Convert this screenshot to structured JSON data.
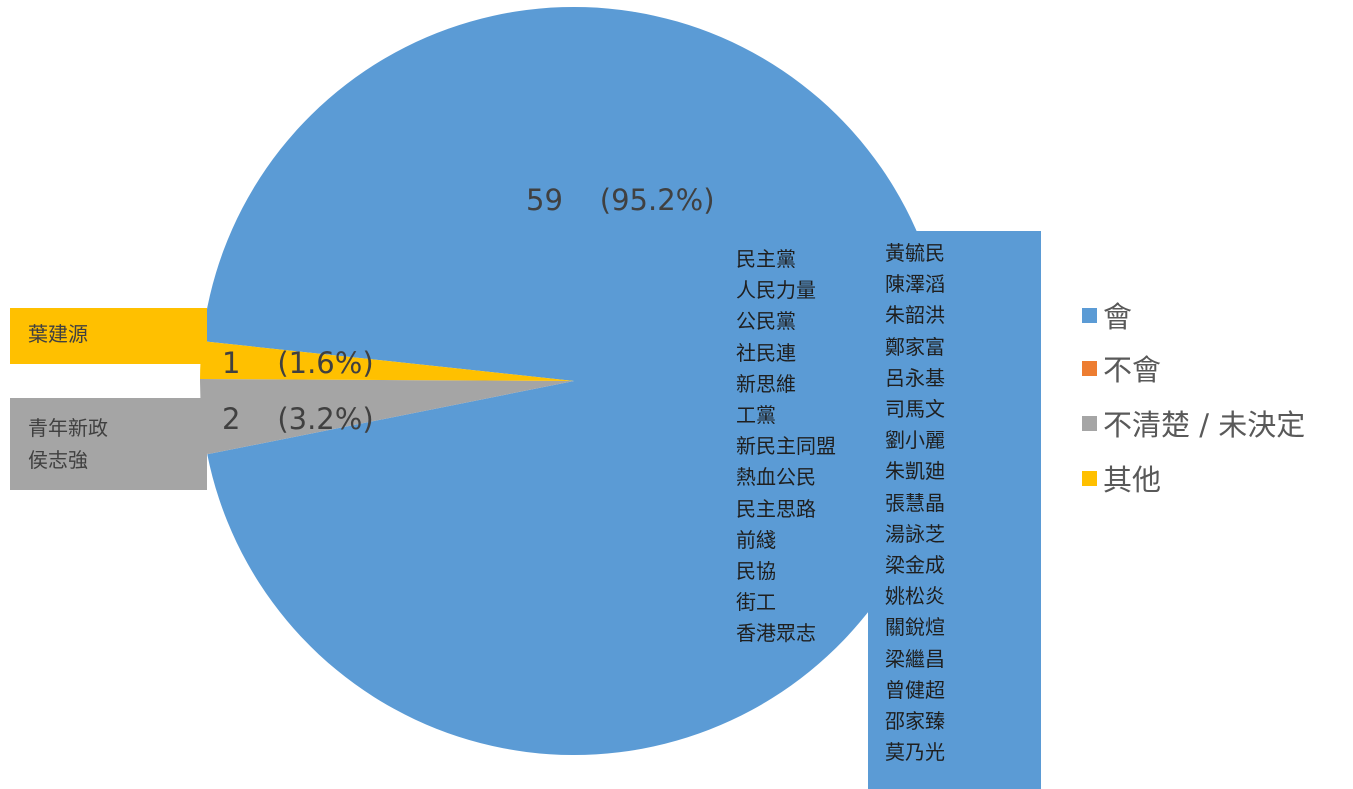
{
  "chart_data": {
    "type": "pie",
    "categories": [
      "會",
      "不會",
      "不清楚 / 未決定",
      "其他"
    ],
    "values": [
      59,
      0,
      2,
      1
    ],
    "percentages": [
      "95.2%",
      "0%",
      "3.2%",
      "1.6%"
    ],
    "colors": [
      "#5b9bd5",
      "#ed7d31",
      "#a5a5a5",
      "#ffc000"
    ],
    "data_labels": {
      "yes": "59    (95.2%)",
      "unsure": "2    (3.2%)",
      "other": "1    (1.6%)"
    },
    "legend_position": "right",
    "callouts": {
      "other": [
        "葉建源"
      ],
      "unsure": [
        "青年新政",
        "侯志強"
      ]
    },
    "yes_parties": [
      "民主黨",
      "人民力量",
      "公民黨",
      "社民連",
      "新思維",
      "工黨",
      "新民主同盟",
      "熱血公民",
      "民主思路",
      "前綫",
      "民協",
      "街工",
      "香港眾志"
    ],
    "yes_people": [
      "黃毓民",
      "陳澤滔",
      "朱韶洪",
      "鄭家富",
      "呂永基",
      "司馬文",
      "劉小麗",
      "朱凱廸",
      "張慧晶",
      "湯詠芝",
      "梁金成",
      "姚松炎",
      "關銳煊",
      "梁繼昌",
      "曾健超",
      "邵家臻",
      "莫乃光"
    ]
  }
}
